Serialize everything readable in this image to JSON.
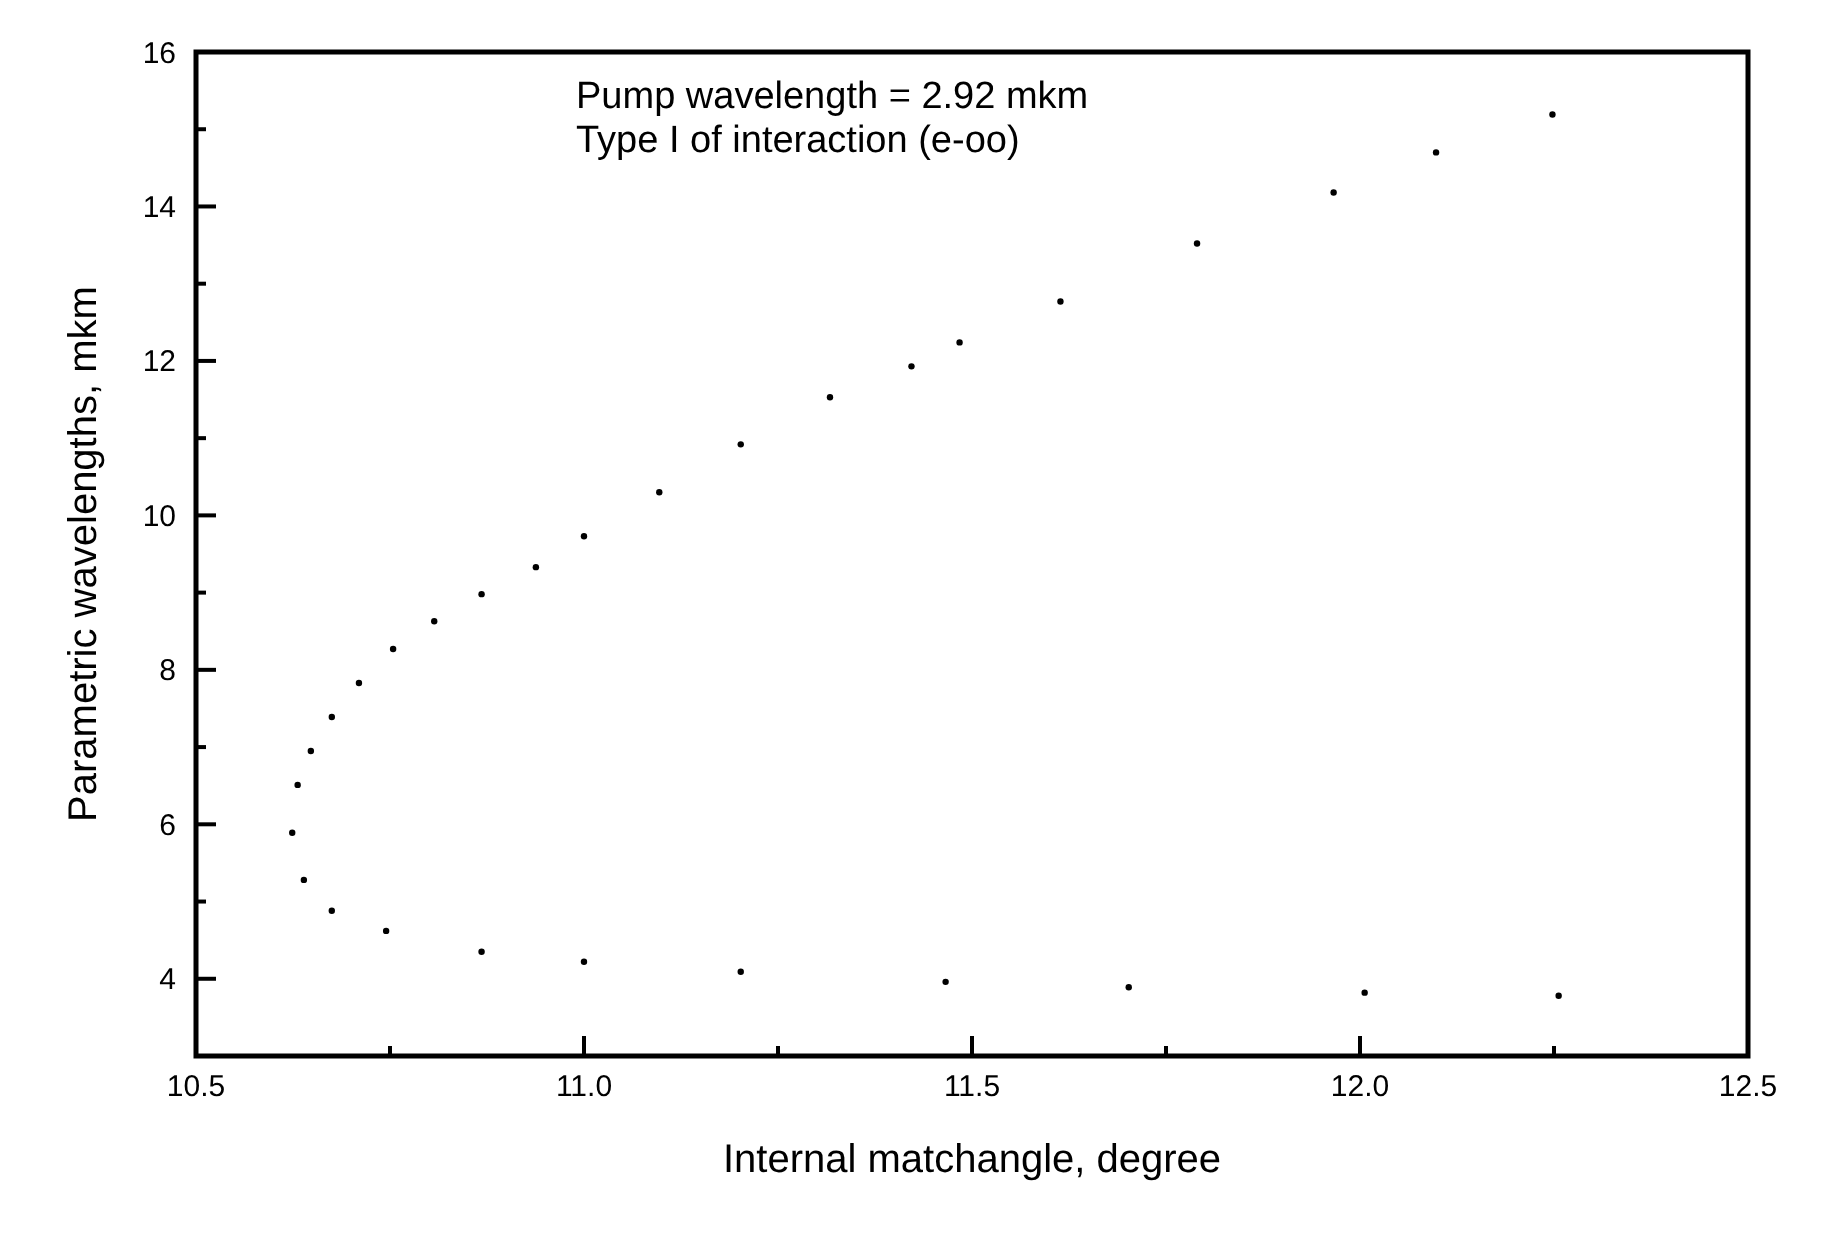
{
  "chart_data": {
    "type": "scatter",
    "xlabel": "Internal matchangle, degree",
    "ylabel": "Parametric wavelengths, mkm",
    "annotations": [
      "Pump wavelength = 2.92 mkm",
      "Type I of interaction (e-oo)"
    ],
    "xlim": [
      10.5,
      12.5
    ],
    "xticks": [
      {
        "value": 10.5,
        "label": "10.5"
      },
      {
        "value": 10.75,
        "label": null
      },
      {
        "value": 11,
        "label": "11.0"
      },
      {
        "value": 11.25,
        "label": null
      },
      {
        "value": 11.5,
        "label": "11.5"
      },
      {
        "value": 11.75,
        "label": null
      },
      {
        "value": 12,
        "label": "12.0"
      },
      {
        "value": 12.25,
        "label": null
      },
      {
        "value": 12.5,
        "label": "12.5"
      }
    ],
    "ylim": [
      3,
      16
    ],
    "yticks": [
      {
        "value": 5,
        "label": null
      },
      4,
      6,
      {
        "value": 7,
        "label": null
      },
      8,
      {
        "value": 9,
        "label": null
      },
      10,
      {
        "value": 11,
        "label": null
      },
      12,
      {
        "value": 13,
        "label": null
      },
      14,
      {
        "value": 15,
        "label": null
      },
      16
    ],
    "marker": "circle",
    "grid": false,
    "series": [
      {
        "color": "#000000",
        "x": [
          12.248,
          12.098,
          11.966,
          11.79,
          11.614,
          11.484,
          11.422,
          11.317,
          11.202,
          11.097,
          11.0,
          10.938,
          10.868,
          10.807,
          10.754,
          10.71,
          10.675,
          10.648,
          10.631,
          10.624,
          10.639,
          10.675,
          10.745,
          10.868,
          11.0,
          11.202,
          11.466,
          11.702,
          12.006,
          12.256
        ],
        "values": [
          15.19,
          14.7,
          14.18,
          13.52,
          12.77,
          12.24,
          11.93,
          11.53,
          10.92,
          10.3,
          9.73,
          9.33,
          8.98,
          8.63,
          8.27,
          7.83,
          7.39,
          6.95,
          6.51,
          5.89,
          5.28,
          4.88,
          4.62,
          4.35,
          4.22,
          4.09,
          3.96,
          3.89,
          3.82,
          3.78
        ]
      }
    ]
  }
}
